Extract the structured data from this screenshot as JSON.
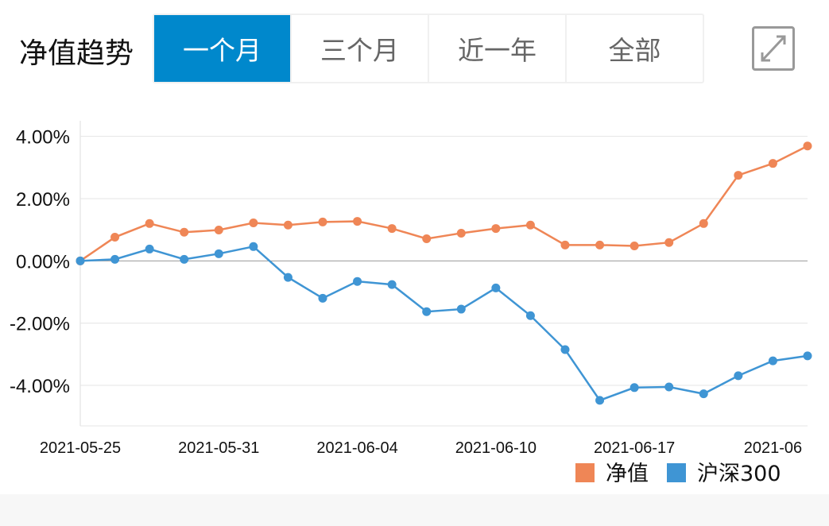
{
  "header": {
    "title": "净值趋势",
    "tabs": [
      {
        "label": "一个月",
        "active": true
      },
      {
        "label": "三个月",
        "active": false
      },
      {
        "label": "近一年",
        "active": false
      },
      {
        "label": "全部",
        "active": false
      }
    ],
    "expand_icon": "expand-icon"
  },
  "chart_data": {
    "type": "line",
    "title": "净值趋势",
    "xlabel": "",
    "ylabel": "",
    "x": [
      "2021-05-25",
      "2021-05-26",
      "2021-05-27",
      "2021-05-28",
      "2021-05-31",
      "2021-06-01",
      "2021-06-02",
      "2021-06-03",
      "2021-06-04",
      "2021-06-07",
      "2021-06-08",
      "2021-06-09",
      "2021-06-10",
      "2021-06-11",
      "2021-06-15",
      "2021-06-16",
      "2021-06-17",
      "2021-06-18",
      "2021-06-21",
      "2021-06-22",
      "2021-06-23",
      "2021-06-24"
    ],
    "x_tick_labels": [
      {
        "index": 0,
        "label": "2021-05-25"
      },
      {
        "index": 4,
        "label": "2021-05-31"
      },
      {
        "index": 8,
        "label": "2021-06-04"
      },
      {
        "index": 12,
        "label": "2021-06-10"
      },
      {
        "index": 16,
        "label": "2021-06-17"
      },
      {
        "index": 20,
        "label": "2021-06"
      }
    ],
    "y_ticks": [
      {
        "value": 4,
        "label": "4.00%"
      },
      {
        "value": 2,
        "label": "2.00%"
      },
      {
        "value": 0,
        "label": "0.00%"
      },
      {
        "value": -2,
        "label": "-2.00%"
      },
      {
        "value": -4,
        "label": "-4.00%"
      }
    ],
    "ylim": [
      -5.3,
      4.5
    ],
    "grid": true,
    "legend_position": "bottom-right",
    "series": [
      {
        "name": "净值",
        "color": "#ef8656",
        "values": [
          0,
          0.76,
          1.2,
          0.92,
          0.99,
          1.22,
          1.15,
          1.25,
          1.27,
          1.04,
          0.71,
          0.89,
          1.04,
          1.15,
          0.51,
          0.51,
          0.48,
          0.59,
          1.2,
          2.75,
          3.13,
          3.69
        ]
      },
      {
        "name": "沪深300",
        "color": "#3f95d4",
        "values": [
          0,
          0.05,
          0.38,
          0.05,
          0.23,
          0.46,
          -0.53,
          -1.2,
          -0.66,
          -0.76,
          -1.63,
          -1.55,
          -0.87,
          -1.76,
          -2.85,
          -4.48,
          -4.07,
          -4.05,
          -4.27,
          -3.69,
          -3.21,
          -3.05
        ]
      }
    ]
  }
}
